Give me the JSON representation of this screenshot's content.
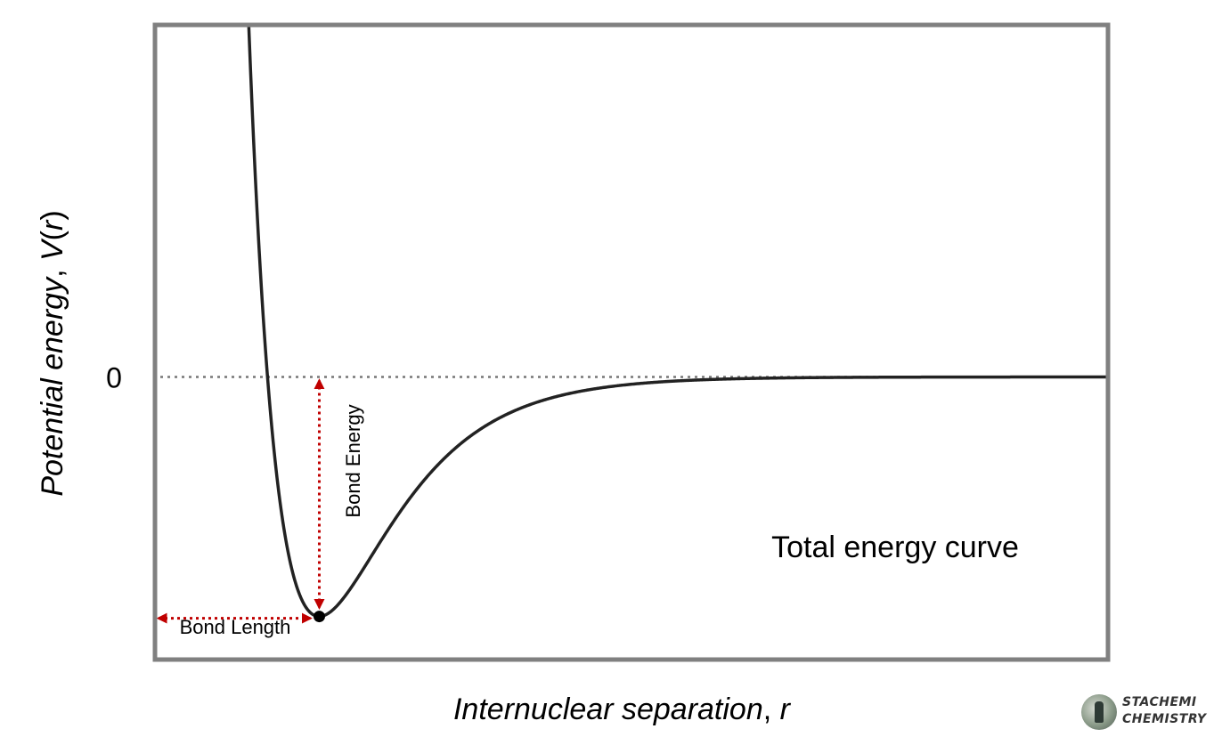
{
  "chart_data": {
    "type": "line",
    "title": "",
    "xlabel_main": "Internuclear separation",
    "xlabel_var": "r",
    "ylabel_main": "Potential energy",
    "ylabel_func": "V",
    "ylabel_var": "r",
    "zero_tick": "0",
    "curve_label": "Total energy curve",
    "bond_energy_label": "Bond Energy",
    "bond_length_label": "Bond Length",
    "potential": {
      "form": "morse",
      "well_depth": 1.0,
      "equilibrium_r": 1.0,
      "width_param": 2.2
    },
    "xlim": [
      0.0,
      5.8
    ],
    "ylim": [
      -1.18,
      1.47
    ],
    "minimum_point": {
      "r": 1.0,
      "V": -1.0
    },
    "zero_line": "dotted",
    "annotation_color": "#c00000",
    "curve_color": "#222222",
    "frame_color": "#808080"
  },
  "logo": {
    "line1": "STACHEMI",
    "line2": "CHEMISTRY"
  }
}
